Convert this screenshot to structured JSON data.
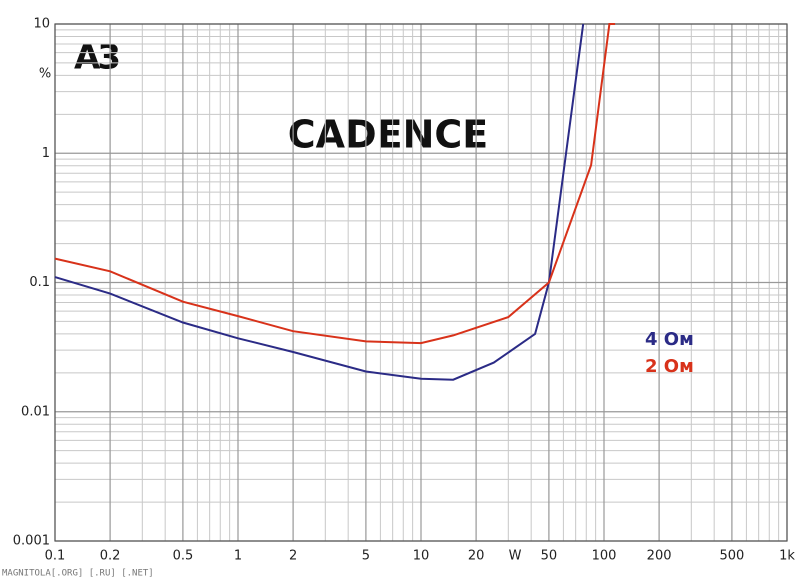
{
  "chart_data": {
    "type": "line",
    "title": "CADENCE",
    "logo": "A3",
    "xlabel": "W",
    "ylabel": "%",
    "watermark": "MAGNITOLA[.ORG] [.RU] [.NET]",
    "xlog": true,
    "ylog": true,
    "grid": true,
    "xlim": [
      0.1,
      1000
    ],
    "ylim": [
      0.001,
      10
    ],
    "xticks": [
      0.1,
      0.2,
      0.5,
      1,
      2,
      5,
      10,
      20,
      50,
      100,
      200,
      500,
      {
        "value": 1000,
        "label": "1k"
      }
    ],
    "yticks": [
      0.001,
      0.01,
      0.1,
      1,
      10
    ],
    "series": [
      {
        "name": "4 Ом",
        "color": "#2b2b86",
        "x": [
          0.1,
          0.2,
          0.5,
          1,
          2,
          5,
          10,
          15,
          25,
          42,
          50,
          77
        ],
        "values": [
          0.11,
          0.082,
          0.049,
          0.037,
          0.029,
          0.0205,
          0.018,
          0.0177,
          0.024,
          0.04,
          0.1,
          10
        ]
      },
      {
        "name": "2 Ом",
        "color": "#d8321a",
        "x": [
          0.1,
          0.2,
          0.5,
          1,
          2,
          5,
          10,
          15,
          30,
          50,
          85,
          107,
          115
        ],
        "values": [
          0.153,
          0.122,
          0.071,
          0.055,
          0.042,
          0.035,
          0.034,
          0.039,
          0.054,
          0.1,
          0.81,
          10,
          10
        ]
      }
    ]
  }
}
